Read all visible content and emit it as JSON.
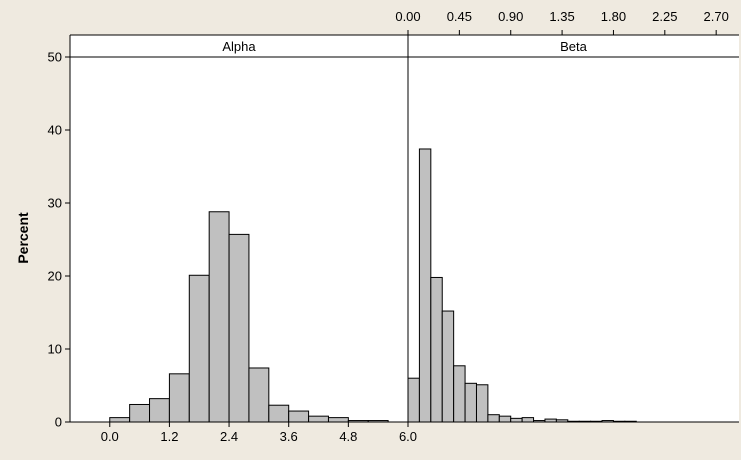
{
  "chart_data": {
    "type": "bar",
    "ylabel": "Percent",
    "ylim": [
      0,
      50
    ],
    "y_ticks": [
      0,
      10,
      20,
      30,
      40,
      50
    ],
    "grid": false,
    "bar_fill": "#c0c0c0",
    "bar_stroke": "#000000",
    "plot_background": "#ffffff",
    "panels": [
      {
        "name": "Alpha",
        "x_axis_position": "bottom",
        "x_ticks": [
          0.0,
          1.2,
          2.4,
          3.6,
          4.8,
          6.0
        ],
        "x_tick_labels": [
          "0.0",
          "1.2",
          "2.4",
          "3.6",
          "4.8",
          "6.0"
        ],
        "xlim": [
          -0.8,
          6.0
        ],
        "bin_width": 0.4,
        "bin_starts": [
          -0.8,
          -0.4,
          0.0,
          0.4,
          0.8,
          1.2,
          1.6,
          2.0,
          2.4,
          2.8,
          3.2,
          3.6,
          4.0,
          4.4,
          4.8,
          5.2,
          5.6
        ],
        "values": [
          0,
          0,
          0.6,
          2.4,
          3.2,
          6.6,
          20.1,
          28.8,
          25.7,
          7.4,
          2.3,
          1.5,
          0.8,
          0.6,
          0.2,
          0.2,
          0
        ]
      },
      {
        "name": "Beta",
        "x_axis_position": "top",
        "x_ticks": [
          0.0,
          0.45,
          0.9,
          1.35,
          1.8,
          2.25,
          2.7
        ],
        "x_tick_labels": [
          "0.00",
          "0.45",
          "0.90",
          "1.35",
          "1.80",
          "2.25",
          "2.70"
        ],
        "xlim": [
          0.0,
          2.9
        ],
        "bin_width": 0.1,
        "bin_starts": [
          0.0,
          0.1,
          0.2,
          0.3,
          0.4,
          0.5,
          0.6,
          0.7,
          0.8,
          0.9,
          1.0,
          1.1,
          1.2,
          1.3,
          1.4,
          1.5,
          1.6,
          1.7,
          1.8,
          1.9,
          2.0,
          2.1,
          2.2,
          2.3,
          2.4,
          2.5,
          2.6,
          2.7,
          2.8
        ],
        "values": [
          6.0,
          37.4,
          19.8,
          15.2,
          7.7,
          5.3,
          5.1,
          1.0,
          0.8,
          0.5,
          0.6,
          0.2,
          0.4,
          0.3,
          0.1,
          0.1,
          0.1,
          0.2,
          0.1,
          0.1,
          0,
          0,
          0,
          0,
          0,
          0,
          0,
          0,
          0
        ]
      }
    ]
  }
}
